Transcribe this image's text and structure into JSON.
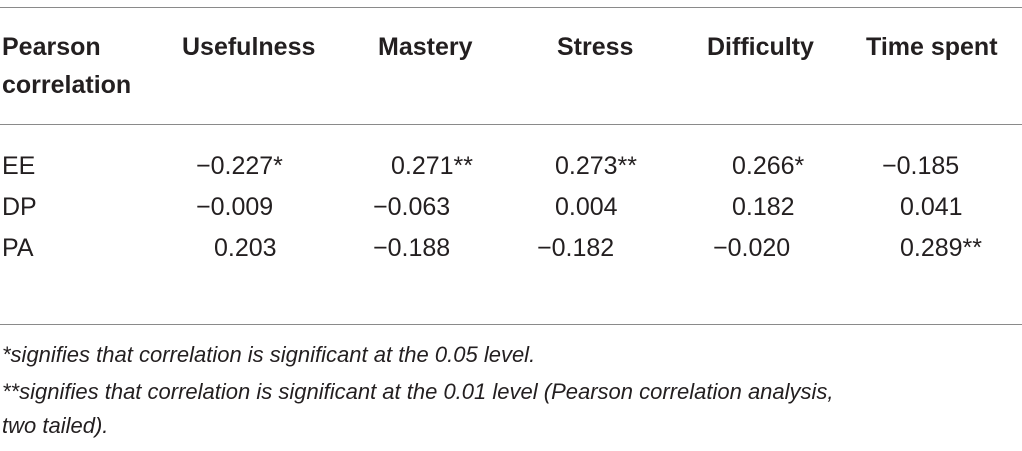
{
  "table": {
    "headers": {
      "first": "Pearson correlation",
      "columns": [
        "Usefulness",
        "Mastery",
        "Stress",
        "Difficulty",
        "Time spent"
      ]
    },
    "rows": [
      {
        "label": "EE",
        "values": [
          "−0.227*",
          "0.271**",
          "0.273**",
          "0.266*",
          "−0.185"
        ]
      },
      {
        "label": "DP",
        "values": [
          "−0.009",
          "−0.063",
          "0.004",
          "0.182",
          "0.041"
        ]
      },
      {
        "label": "PA",
        "values": [
          "0.203",
          "−0.188",
          "−0.182",
          "−0.020",
          "0.289**"
        ]
      }
    ]
  },
  "footnotes": [
    "*signifies that correlation is significant at the 0.05 level.",
    "**signifies that correlation is significant at the 0.01 level (Pearson correlation analysis,",
    "two tailed)."
  ]
}
